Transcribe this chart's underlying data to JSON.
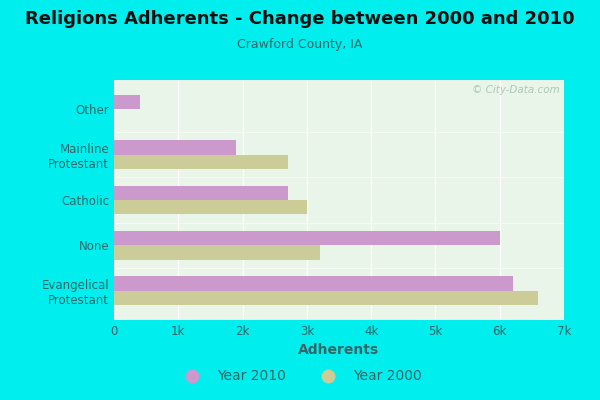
{
  "title": "Religions Adherents - Change between 2000 and 2010",
  "subtitle": "Crawford County, IA",
  "xlabel": "Adherents",
  "categories": [
    "Evangelical\nProtestant",
    "None",
    "Catholic",
    "Mainline\nProtestant",
    "Other"
  ],
  "values_2010": [
    6200,
    6000,
    2700,
    1900,
    400
  ],
  "values_2000": [
    6600,
    3200,
    3000,
    2700,
    0
  ],
  "color_2010": "#cc99cc",
  "color_2000": "#cccc99",
  "background_outer": "#00eeee",
  "background_inner": "#e8f5e8",
  "xlim": [
    0,
    7000
  ],
  "xticks": [
    0,
    1000,
    2000,
    3000,
    4000,
    5000,
    6000,
    7000
  ],
  "xticklabels": [
    "0",
    "1k",
    "2k",
    "3k",
    "4k",
    "5k",
    "6k",
    "7k"
  ],
  "watermark": "© City-Data.com",
  "title_fontsize": 13,
  "subtitle_fontsize": 9,
  "xlabel_fontsize": 10,
  "bar_height": 0.32
}
